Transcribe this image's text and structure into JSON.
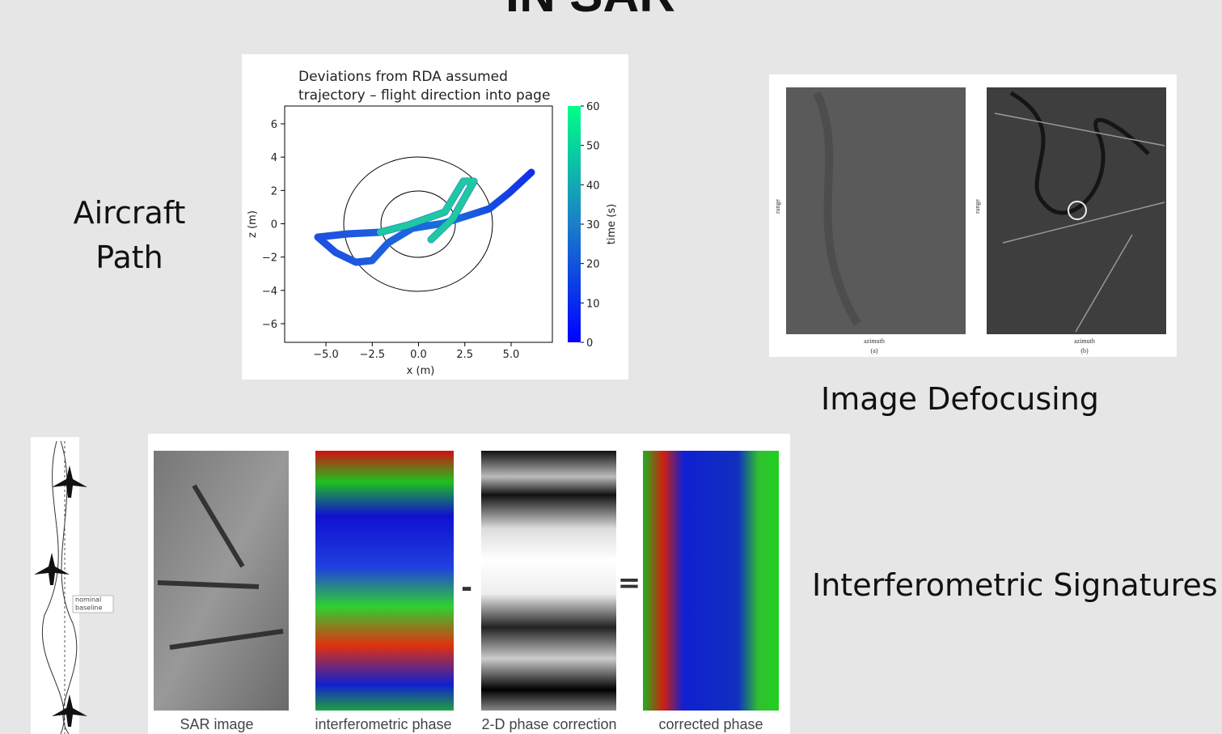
{
  "title": "IN SAR",
  "aircraft_path": {
    "label_lines": [
      "Aircraft",
      "Path"
    ]
  },
  "trajectory_plot": {
    "title_lines": [
      "Deviations from RDA assumed",
      "trajectory – flight direction into page"
    ],
    "x_label": "x (m)",
    "y_label": "z (m)",
    "colorbar_label": "time (s)",
    "x_ticks": [
      "−5.0",
      "−2.5",
      "0.0",
      "2.5",
      "5.0"
    ],
    "y_ticks": [
      "6",
      "4",
      "2",
      "0",
      "−2",
      "−4",
      "−6"
    ],
    "colorbar_ticks": [
      "0",
      "10",
      "20",
      "30",
      "40",
      "50",
      "60"
    ]
  },
  "defocusing": {
    "label": "Image Defocusing",
    "axis_left": "range",
    "axis_bottom": "azimuth",
    "panels": [
      "(a)",
      "(b)"
    ]
  },
  "interferometry": {
    "label": "Interferometric Signatures",
    "baseline_lines": [
      "nominal",
      "baseline"
    ],
    "captions": [
      "SAR image",
      "interferometric phase",
      "2-D phase correction",
      "corrected phase"
    ],
    "operators": [
      "-",
      "="
    ]
  }
}
